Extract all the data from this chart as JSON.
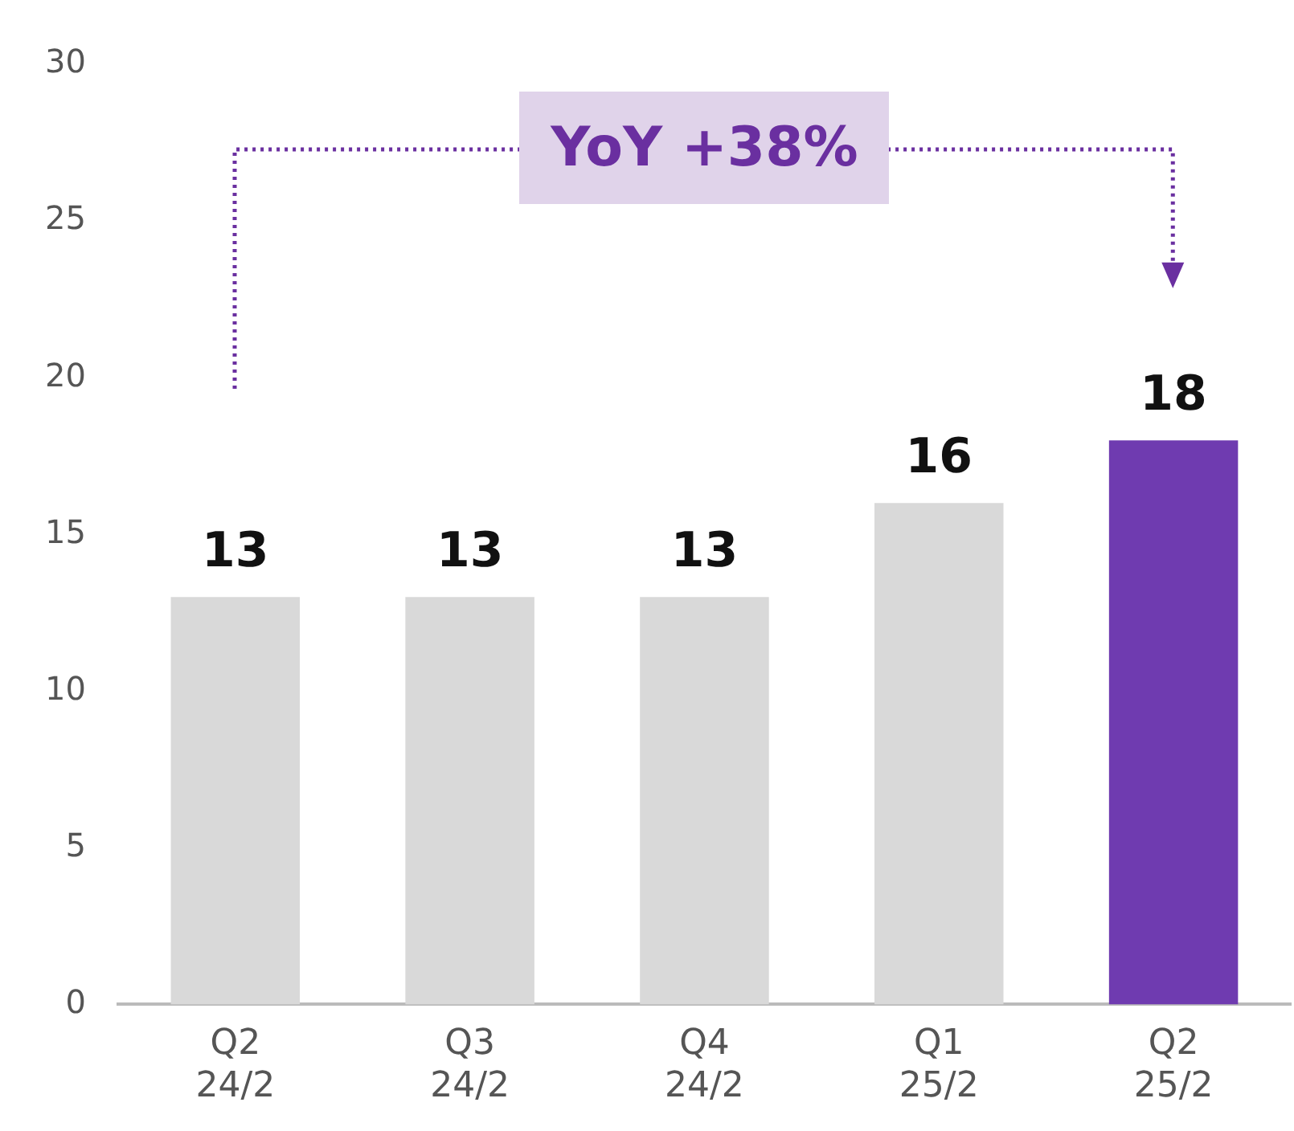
{
  "chart_data": {
    "type": "bar",
    "categories": [
      "Q2 24/2",
      "Q3 24/2",
      "Q4 24/2",
      "Q1 25/2",
      "Q2 25/2"
    ],
    "values": [
      13,
      13,
      13,
      16,
      18
    ],
    "colors": [
      "#d9d9d9",
      "#d9d9d9",
      "#d9d9d9",
      "#d9d9d9",
      "#6f3bb0"
    ],
    "ylim": [
      0,
      30
    ],
    "yticks": [
      0,
      5,
      10,
      15,
      20,
      25,
      30
    ],
    "grid": false,
    "legend": false,
    "data_labels": true,
    "annotations": [
      "YoY +38%"
    ]
  }
}
